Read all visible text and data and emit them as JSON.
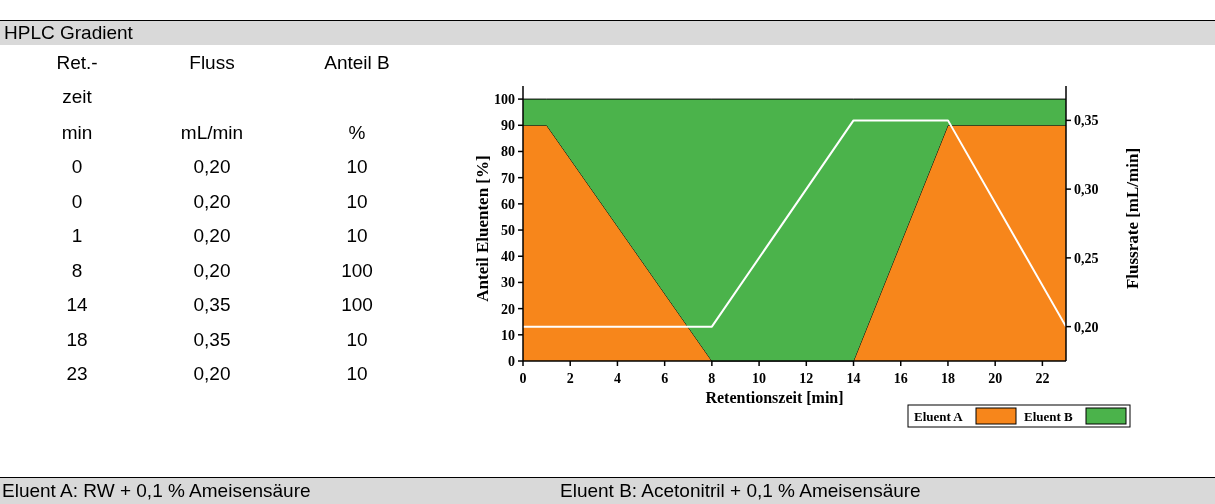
{
  "chart_data": [
    {
      "type": "other",
      "title": "HPLC Gradient",
      "annotations": [
        "Ret.-zeit",
        "Fluss",
        "Anteil B",
        "min",
        "mL/min",
        "%",
        "0",
        "0,20",
        "10",
        "0",
        "0,20",
        "10",
        "1",
        "0,20",
        "10",
        "8",
        "0,20",
        "100",
        "14",
        "0,35",
        "100",
        "18",
        "0,35",
        "10",
        "23",
        "0,20",
        "10",
        "Eluent A: RW + 0,1 % Ameisensäure",
        "Eluent B: Acetonitril + 0,1 % Ameisensäure"
      ]
    },
    {
      "type": "area",
      "stacked": true,
      "xlabel": "Retentionszeit [min]",
      "ylabel": "Anteil Eluenten [%]",
      "y2label": "Flussrate [mL/min]",
      "x": [
        0,
        0,
        1,
        8,
        14,
        18,
        23
      ],
      "xlim": [
        0,
        23
      ],
      "xticks": [
        0,
        2,
        4,
        6,
        8,
        10,
        12,
        14,
        16,
        18,
        20,
        22
      ],
      "ylim": [
        0,
        105
      ],
      "yticks": [
        0,
        10,
        20,
        30,
        40,
        50,
        60,
        70,
        80,
        90,
        100
      ],
      "y2lim": [
        0.175,
        0.375
      ],
      "y2ticks": [
        {
          "value": 0.2,
          "label": "0,20"
        },
        {
          "value": 0.25,
          "label": "0,25"
        },
        {
          "value": 0.3,
          "label": "0,30"
        },
        {
          "value": 0.35,
          "label": "0,35"
        }
      ],
      "legend": "bottom right",
      "series": [
        {
          "name": "Eluent A",
          "color": "#f7861b",
          "values": [
            90,
            90,
            90,
            0,
            0,
            90,
            90
          ]
        },
        {
          "name": "Eluent B",
          "color": "#4bb34b",
          "values": [
            10,
            10,
            10,
            100,
            100,
            10,
            10
          ]
        },
        {
          "type": "line",
          "axis": "y2",
          "color": "#ffffff",
          "values": [
            0.2,
            0.2,
            0.2,
            0.2,
            0.35,
            0.35,
            0.2
          ]
        }
      ]
    }
  ]
}
